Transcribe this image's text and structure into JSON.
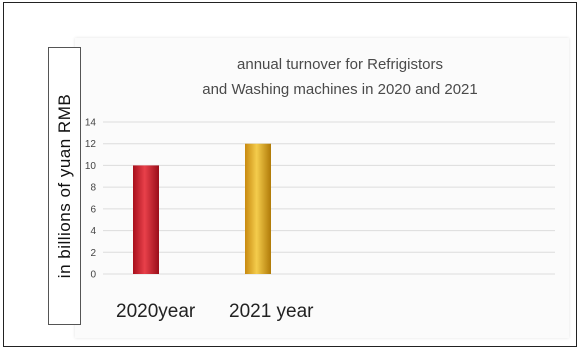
{
  "chart_data": {
    "type": "bar",
    "title_lines": [
      "annual turnover for Refrigistors",
      "and Washing machines  in 2020 and 2021"
    ],
    "ylabel": "in billions of yuan RMB",
    "categories": [
      "2020year",
      "2021 year"
    ],
    "values": [
      10,
      12
    ],
    "ylim": [
      0,
      14
    ],
    "yticks": [
      "0",
      "2",
      "4",
      "6",
      "8",
      "10",
      "12",
      "14"
    ],
    "grid": true,
    "colors": [
      "#d8283a",
      "#e8b028"
    ]
  }
}
